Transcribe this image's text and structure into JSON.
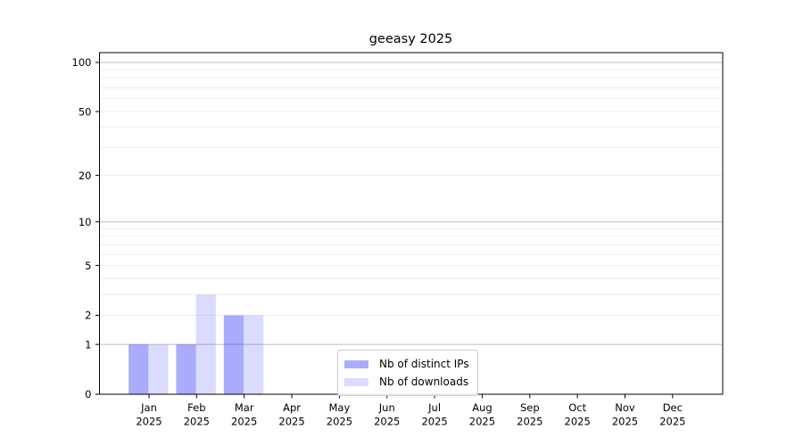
{
  "chart_data": {
    "type": "bar",
    "title": "geeasy 2025",
    "xlabel": "",
    "ylabel": "",
    "yscale": "log1p",
    "categories": [
      "Jan",
      "Feb",
      "Mar",
      "Apr",
      "May",
      "Jun",
      "Jul",
      "Aug",
      "Sep",
      "Oct",
      "Nov",
      "Dec"
    ],
    "year_label": "2025",
    "series": [
      {
        "name": "Nb of distinct IPs",
        "color": "#aaaaf6",
        "fill": "rgba(13,13,242,0.345)",
        "values": [
          1,
          1,
          2,
          0,
          0,
          0,
          0,
          0,
          0,
          0,
          0,
          0
        ]
      },
      {
        "name": "Nb of downloads",
        "color": "#dbdbf9",
        "fill": "rgba(13,13,242,0.15)",
        "values": [
          1,
          3,
          2,
          0,
          0,
          0,
          0,
          0,
          0,
          0,
          0,
          0
        ]
      }
    ],
    "ytick_values": [
      0,
      1,
      2,
      5,
      10,
      20,
      50,
      100
    ],
    "ymax_value": 100,
    "ylim": [
      0,
      100
    ],
    "major_grid_values": [
      1,
      10,
      100
    ],
    "minor_grid_values": [
      2,
      3,
      4,
      5,
      6,
      7,
      8,
      9,
      20,
      30,
      40,
      50,
      60,
      70,
      80,
      90
    ],
    "grid": true,
    "legend_position": "lower center"
  },
  "colors": {
    "background": "#ffffff",
    "axis": "#000000",
    "text": "#000000",
    "grid_major": "#bdbdbd",
    "grid_minor": "#ebebeb",
    "legend_border": "#cccccc"
  }
}
